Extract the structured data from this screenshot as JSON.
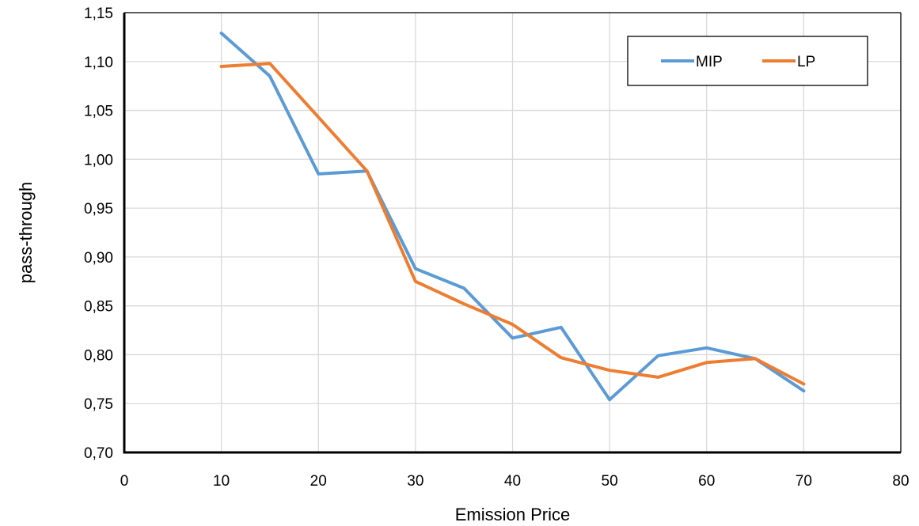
{
  "chart_data": {
    "type": "line",
    "xlabel": "Emission Price",
    "ylabel": "pass-through",
    "xlim": [
      0,
      80
    ],
    "ylim": [
      0.7,
      1.15
    ],
    "xticks": [
      "0",
      "10",
      "20",
      "30",
      "40",
      "50",
      "60",
      "70",
      "80"
    ],
    "yticks": [
      "0,70",
      "0,75",
      "0,80",
      "0,85",
      "0,90",
      "0,95",
      "1,00",
      "1,05",
      "1,10",
      "1,15"
    ],
    "grid": true,
    "legend_position": "top-right",
    "x": [
      10,
      15,
      20,
      25,
      30,
      35,
      40,
      45,
      50,
      55,
      60,
      65,
      70
    ],
    "series": [
      {
        "name": "MIP",
        "color": "#5B9BD5",
        "values": [
          1.129,
          1.085,
          0.985,
          0.988,
          0.888,
          0.868,
          0.817,
          0.828,
          0.754,
          0.799,
          0.807,
          0.796,
          0.763
        ]
      },
      {
        "name": "LP",
        "color": "#ED7D31",
        "values": [
          1.095,
          1.098,
          1.043,
          0.988,
          0.875,
          0.852,
          0.831,
          0.797,
          0.784,
          0.777,
          0.792,
          0.796,
          0.77
        ]
      }
    ]
  }
}
